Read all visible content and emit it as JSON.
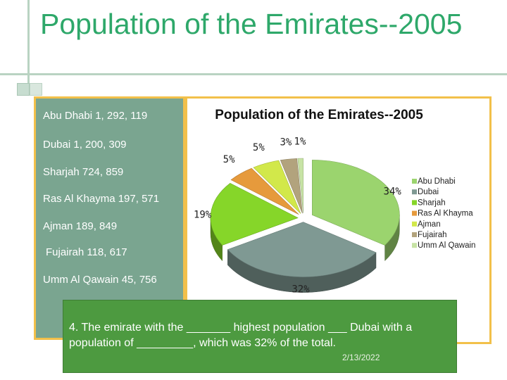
{
  "slide": {
    "title": "Population of the Emirates--2005"
  },
  "left_list": [
    "Abu Dhabi 1, 292, 119",
    "Dubai 1, 200, 309",
    "Sharjah 724, 859",
    "Ras Al Khayma 197, 571",
    "Ajman 189, 849",
    "Fujairah 118, 617",
    "Umm Al Qawain 45, 756"
  ],
  "question": {
    "text": "4. The emirate with the _______ highest population ___ Dubai with a population of _________, which was 32% of the total.",
    "date": "2/13/2022"
  },
  "chart_data": {
    "type": "pie",
    "title": "Population of the Emirates--2005",
    "legend_position": "right",
    "categories": [
      "Abu Dhabi",
      "Dubai",
      "Sharjah",
      "Ras Al Khayma",
      "Ajman",
      "Fujairah",
      "Umm Al Qawain"
    ],
    "values": [
      34,
      32,
      19,
      5,
      5,
      3,
      1
    ],
    "labels": [
      "34%",
      "32%",
      "19%",
      "5%",
      "5%",
      "3%",
      "1%"
    ],
    "colors": [
      "#9bd46e",
      "#7f9993",
      "#86d629",
      "#e69a3c",
      "#d2e84a",
      "#b2a37d",
      "#c7e3a5"
    ]
  }
}
